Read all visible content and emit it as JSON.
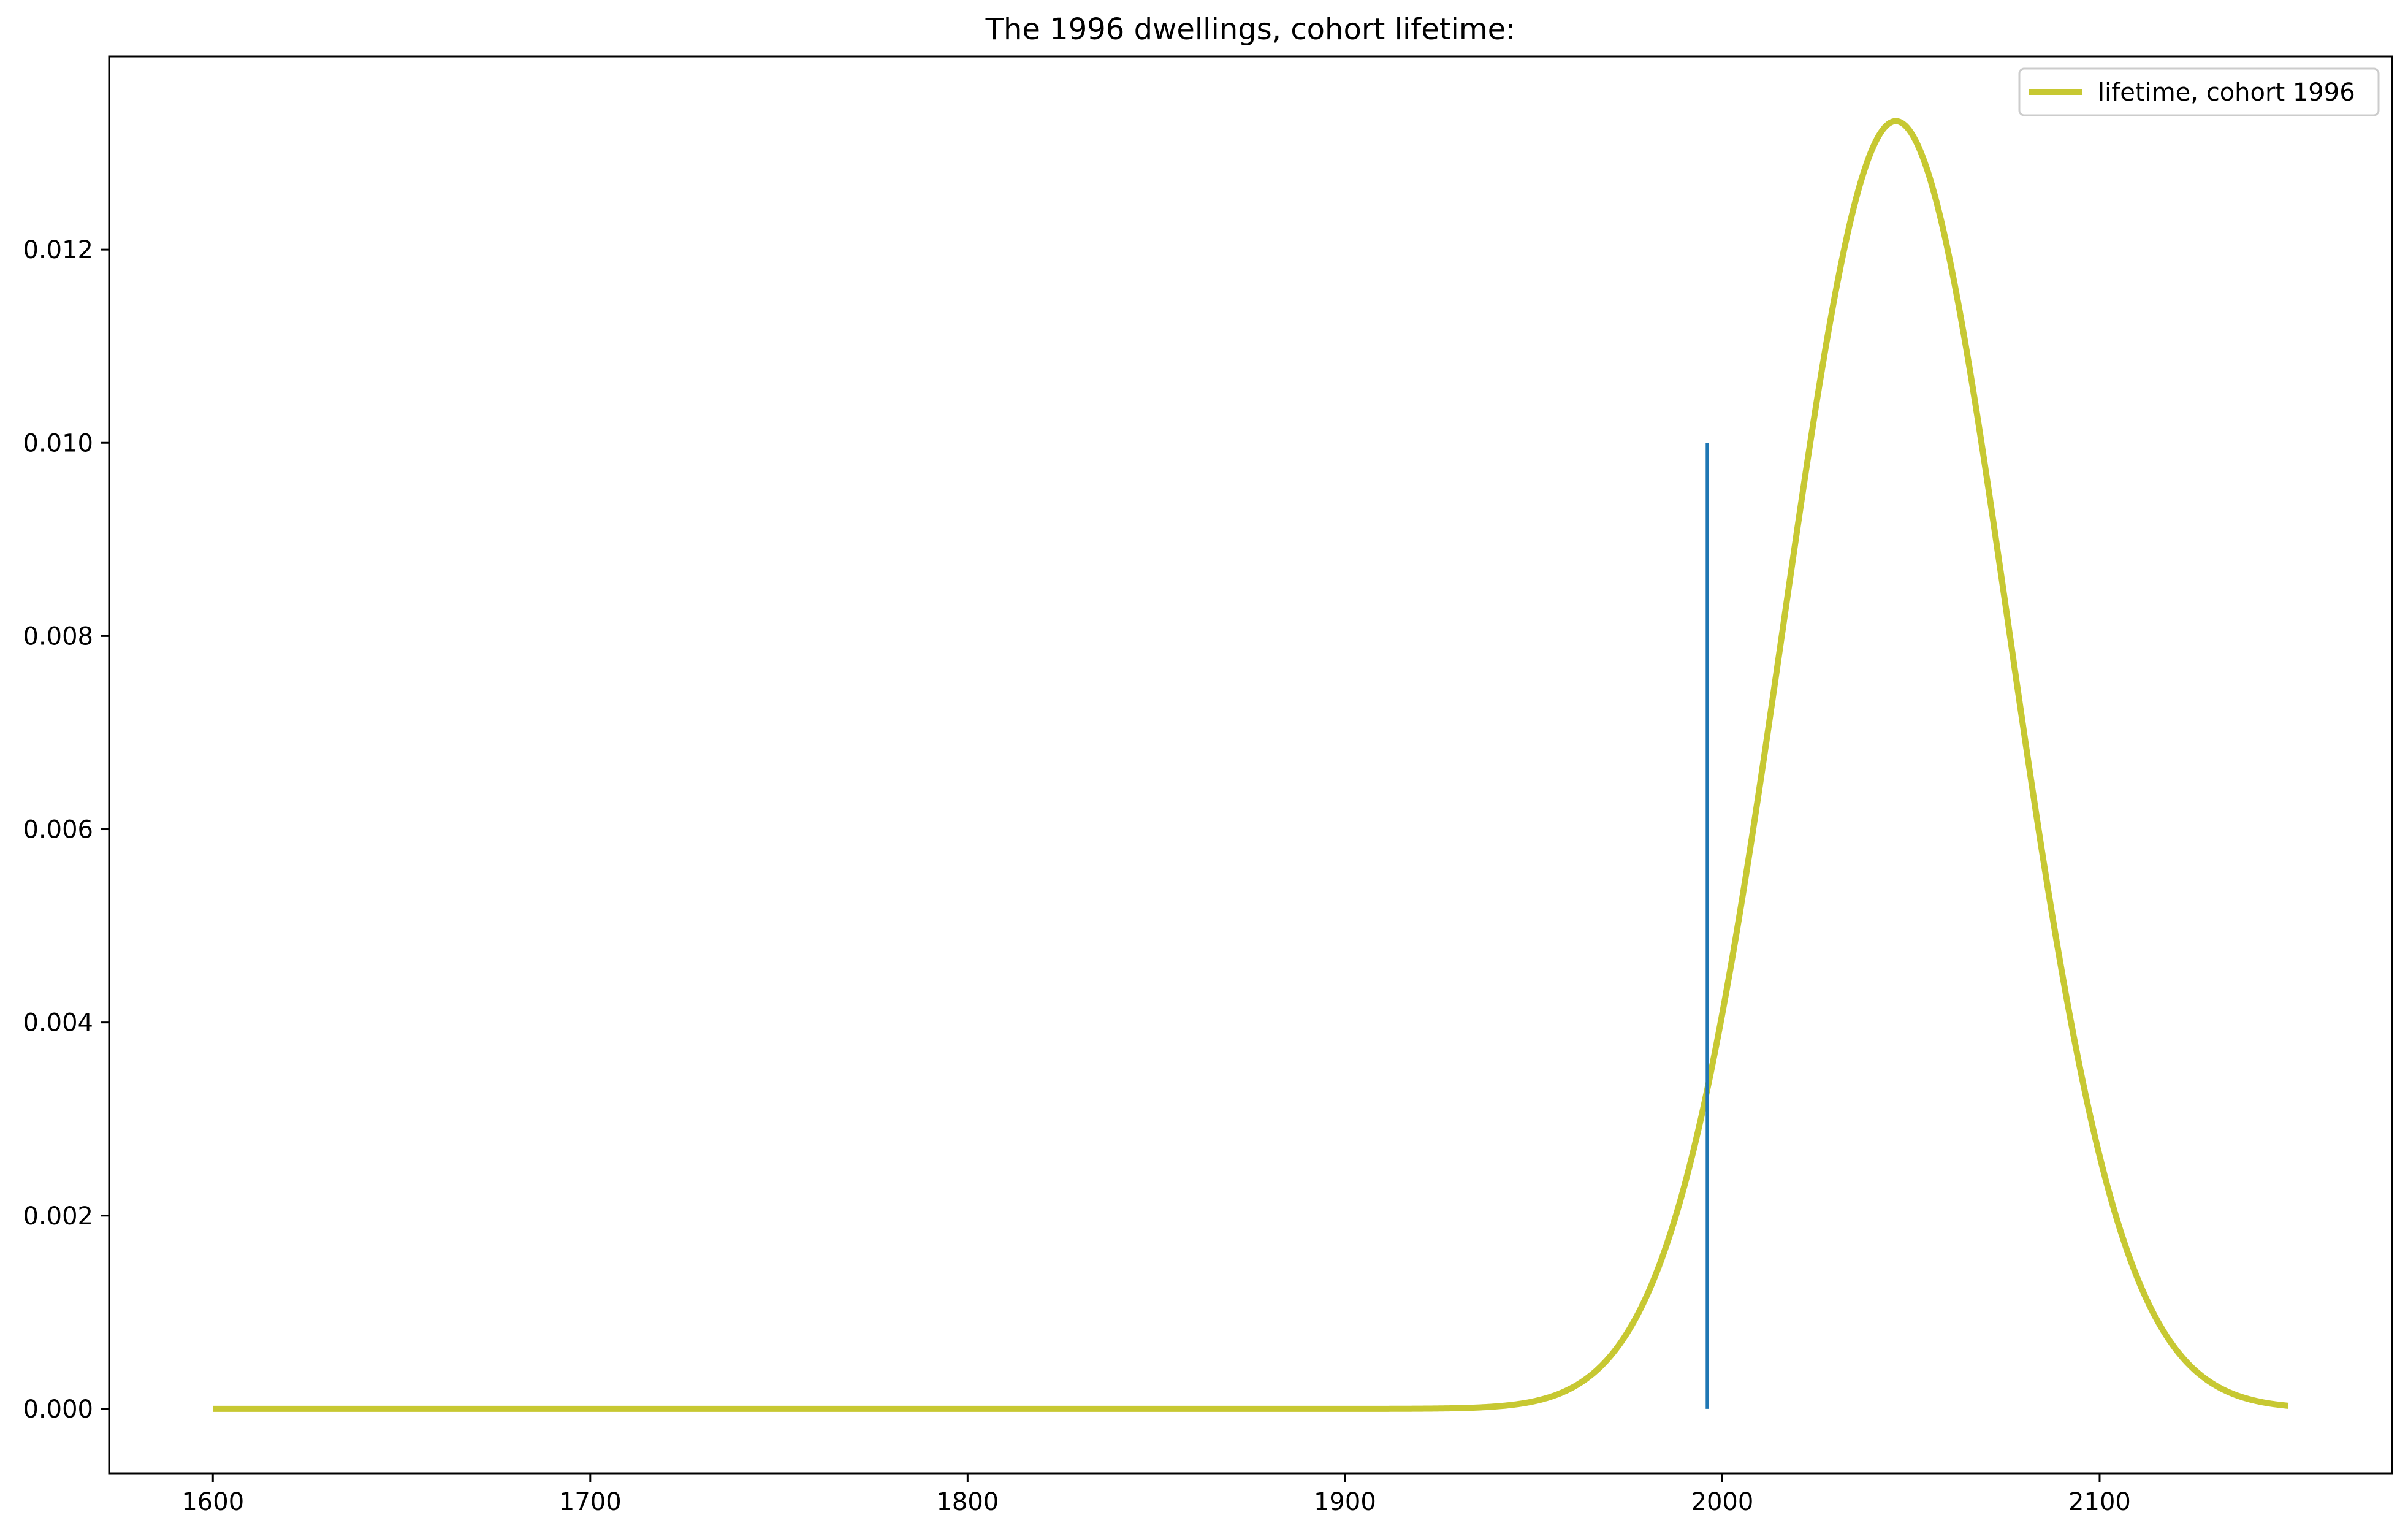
{
  "chart_data": {
    "type": "line",
    "title": "The 1996 dwellings, cohort lifetime:",
    "xlabel": "",
    "ylabel": "",
    "xlim": [
      1572.5,
      2177.5
    ],
    "ylim": [
      -0.000667,
      0.014
    ],
    "x_ticks": [
      1600,
      1700,
      1800,
      1900,
      2000,
      2100
    ],
    "x_tick_labels": [
      "1600",
      "1700",
      "1800",
      "1900",
      "2000",
      "2100"
    ],
    "y_ticks": [
      0.0,
      0.002,
      0.004,
      0.006,
      0.008,
      0.01,
      0.012
    ],
    "y_tick_labels": [
      "0.000",
      "0.002",
      "0.004",
      "0.006",
      "0.008",
      "0.010",
      "0.012"
    ],
    "grid": false,
    "legend_position": "top-right",
    "series": [
      {
        "name": "lifetime, cohort 1996",
        "color": "#c7c832",
        "x": [
          1600,
          1700,
          1800,
          1850,
          1900,
          1920,
          1930,
          1940,
          1950,
          1960,
          1970,
          1980,
          1990,
          1996,
          2000,
          2010,
          2020,
          2030,
          2040,
          2046,
          2050,
          2060,
          2070,
          2080,
          2090,
          2100,
          2110,
          2120,
          2130,
          2140,
          2150
        ],
        "y": [
          0.0,
          0.0,
          0.0,
          0.0,
          0.0,
          1e-05,
          3e-05,
          7e-05,
          0.00018,
          0.00044,
          0.00098,
          0.00197,
          0.00366,
          0.00329,
          0.00399,
          0.00631,
          0.00891,
          0.01117,
          0.01275,
          0.01333,
          0.01321,
          0.01217,
          0.01012,
          0.0076,
          0.00519,
          0.00323,
          0.00183,
          0.00094,
          0.00044,
          0.00019,
          7e-05
        ]
      }
    ],
    "vertical_line": {
      "x": 1996,
      "y_from": 0.0,
      "y_to": 0.01,
      "color": "#1f77b4"
    }
  }
}
